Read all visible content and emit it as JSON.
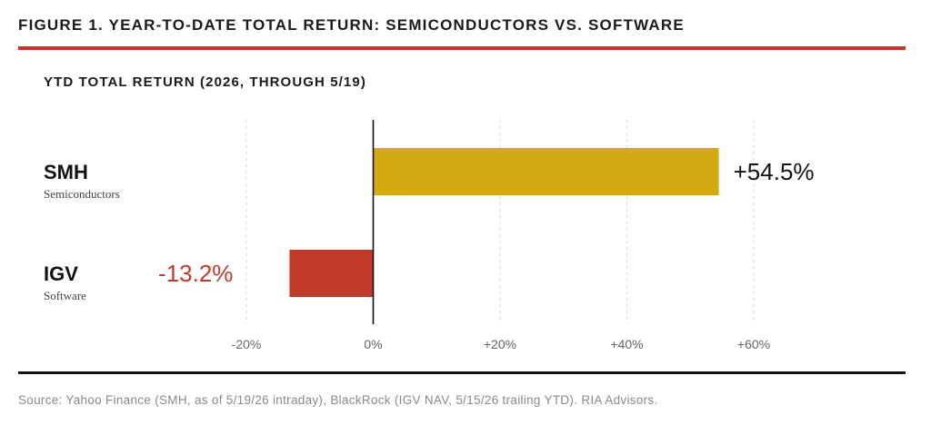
{
  "figure_title": "FIGURE 1. YEAR-TO-DATE TOTAL RETURN: SEMICONDUCTORS VS. SOFTWARE",
  "source": "Source: Yahoo Finance (SMH, as of 5/19/26 intraday), BlackRock (IGV NAV, 5/15/26 trailing YTD). RIA Advisors.",
  "colors": {
    "accent_rule": "#c0392b",
    "positive": "#d4aa10",
    "negative": "#c0392b"
  },
  "chart_data": {
    "type": "bar",
    "orientation": "horizontal",
    "title": "YTD TOTAL RETURN (2026, THROUGH 5/19)",
    "categories": [
      "SMH",
      "IGV"
    ],
    "category_sublabels": [
      "Semiconductors",
      "Software"
    ],
    "values": [
      54.5,
      -13.2
    ],
    "value_labels": [
      "+54.5%",
      "-13.2%"
    ],
    "bar_colors": [
      "#d4aa10",
      "#c0392b"
    ],
    "label_colors": [
      "#111111",
      "#c0392b"
    ],
    "xlim": [
      -20,
      60
    ],
    "xticks": [
      -20,
      0,
      20,
      40,
      60
    ],
    "xtick_labels": [
      "-20%",
      "0%",
      "+20%",
      "+40%",
      "+60%"
    ],
    "grid": "vertical dashed",
    "xlabel": "",
    "ylabel": ""
  }
}
